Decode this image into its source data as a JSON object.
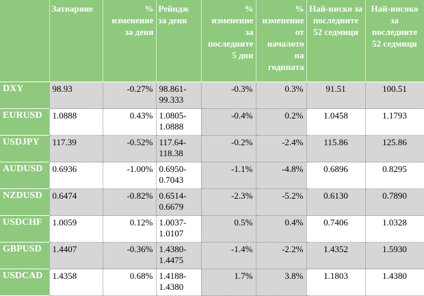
{
  "header": {
    "corner": "",
    "close": "Затваряне",
    "day_change": "% изменение за деня",
    "day_range": "Рейндж за деня",
    "change_5d": "% изменение за последните 5 дни",
    "change_ytd": "% изменение от началото на годината",
    "low_52w": "Най-ниско за последните 52 седмици",
    "high_52w": "Най-високо за последните 52 седмици"
  },
  "rows": [
    {
      "pair": "DXY",
      "close": "98.93",
      "day_change": "-0.27%",
      "range": "98.861-99.333",
      "change_5d": "-0.3%",
      "ytd": "0.3%",
      "low": "91.51",
      "high": "100.51"
    },
    {
      "pair": "EURUSD",
      "close": "1.0888",
      "day_change": "0.43%",
      "range": "1.0805-1.0888",
      "change_5d": "-0.4%",
      "ytd": "0.2%",
      "low": "1.0458",
      "high": "1.1793"
    },
    {
      "pair": "USDJPY",
      "close": "117.39",
      "day_change": "-0.52%",
      "range": "117.64-118.38",
      "change_5d": "-0.2%",
      "ytd": "-2.4%",
      "low": "115.86",
      "high": "125.86"
    },
    {
      "pair": "AUDUSD",
      "close": "0.6936",
      "day_change": "-1.00%",
      "range": "0.6950-0.7043",
      "change_5d": "-1.1%",
      "ytd": "-4.8%",
      "low": "0.6896",
      "high": "0.8295"
    },
    {
      "pair": "NZDUSD",
      "close": "0.6474",
      "day_change": "-0.82%",
      "range": "0.6514-0.6679",
      "change_5d": "-2.3%",
      "ytd": "-5.2%",
      "low": "0.6130",
      "high": "0.7890"
    },
    {
      "pair": "USDCHF",
      "close": "1.0059",
      "day_change": "0.12%",
      "range": "1.0037-1.0107",
      "change_5d": "0.5%",
      "ytd": "0.4%",
      "low": "0.7406",
      "high": "1.0328"
    },
    {
      "pair": "GBPUSD",
      "close": "1.4407",
      "day_change": "-0.36%",
      "range": "1.4380-1.4475",
      "change_5d": "-1.4%",
      "ytd": "-2.2%",
      "low": "1.4352",
      "high": "1.5930"
    },
    {
      "pair": "USDCAD",
      "close": "1.4358",
      "day_change": "0.68%",
      "range": "1.4188-1.4380",
      "change_5d": "1.7%",
      "ytd": "3.8%",
      "low": "1.1803",
      "high": "1.4380"
    }
  ],
  "colors": {
    "header_green": "#8fc97e",
    "cell_grey": "#d6d6d6",
    "cell_white": "#ffffff"
  }
}
